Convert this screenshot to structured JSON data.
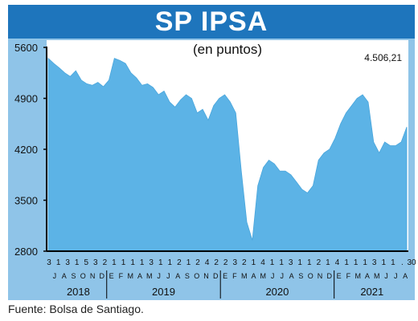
{
  "title": "SP IPSA",
  "source": "Fuente: Bolsa de Santiago.",
  "colors": {
    "frame": "#8fc4e8",
    "title_bar": "#1e75bc",
    "plot_background": "#ffffff",
    "area_fill": "#5cb3e6",
    "axis": "#000000"
  },
  "chart_data": {
    "type": "area",
    "title": "SP IPSA",
    "subtitle": "(en puntos)",
    "last_value_label": "4.506,21",
    "ylim": [
      2800,
      5700
    ],
    "yticks": [
      {
        "value": 2800,
        "label": "2800"
      },
      {
        "value": 3500,
        "label": "3500"
      },
      {
        "value": 4200,
        "label": "4200"
      },
      {
        "value": 4900,
        "label": "4900"
      },
      {
        "value": 5600,
        "label": "5600"
      }
    ],
    "grid": false,
    "legend": "none",
    "day_labels": [
      "3",
      "1",
      "3",
      "1",
      "5",
      "3",
      "2",
      "1",
      "1",
      "1",
      "1",
      "3",
      "1",
      "1",
      "2",
      "1",
      "2",
      "4",
      "2",
      "2",
      "3",
      "2",
      "1",
      "4",
      "1",
      "1",
      "3",
      "1",
      "1",
      "2",
      "1",
      "4",
      "1",
      "1",
      "1",
      "3",
      "1",
      "1",
      ".",
      "30"
    ],
    "month_labels": [
      "J",
      "A",
      "S",
      "O",
      "N",
      "D",
      "E",
      "F",
      "M",
      "A",
      "M",
      "J",
      "J",
      "A",
      "S",
      "O",
      "N",
      "D",
      "E",
      "F",
      "M",
      "A",
      "M",
      "J",
      "J",
      "A",
      "S",
      "O",
      "N",
      "D",
      "E",
      "F",
      "M",
      "A",
      "M",
      "J",
      "J",
      "A"
    ],
    "years": [
      {
        "label": "2018",
        "months": 6
      },
      {
        "label": "2019",
        "months": 12
      },
      {
        "label": "2020",
        "months": 12
      },
      {
        "label": "2021",
        "months": 8
      }
    ],
    "series": [
      {
        "values": [
          5450,
          5380,
          5320,
          5250,
          5200,
          5280,
          5150,
          5100,
          5080,
          5120,
          5060,
          5150,
          5450,
          5420,
          5380,
          5250,
          5180,
          5080,
          5100,
          5050,
          4950,
          5000,
          4850,
          4780,
          4880,
          4950,
          4900,
          4700,
          4750,
          4600,
          4800,
          4900,
          4950,
          4850,
          4700,
          3900,
          3200,
          2950,
          3700,
          3950,
          4050,
          4000,
          3900,
          3900,
          3850,
          3750,
          3650,
          3600,
          3700,
          4050,
          4150,
          4200,
          4350,
          4550,
          4700,
          4800,
          4900,
          4950,
          4850,
          4300,
          4150,
          4300,
          4250,
          4250,
          4300,
          4506.21
        ]
      }
    ]
  }
}
